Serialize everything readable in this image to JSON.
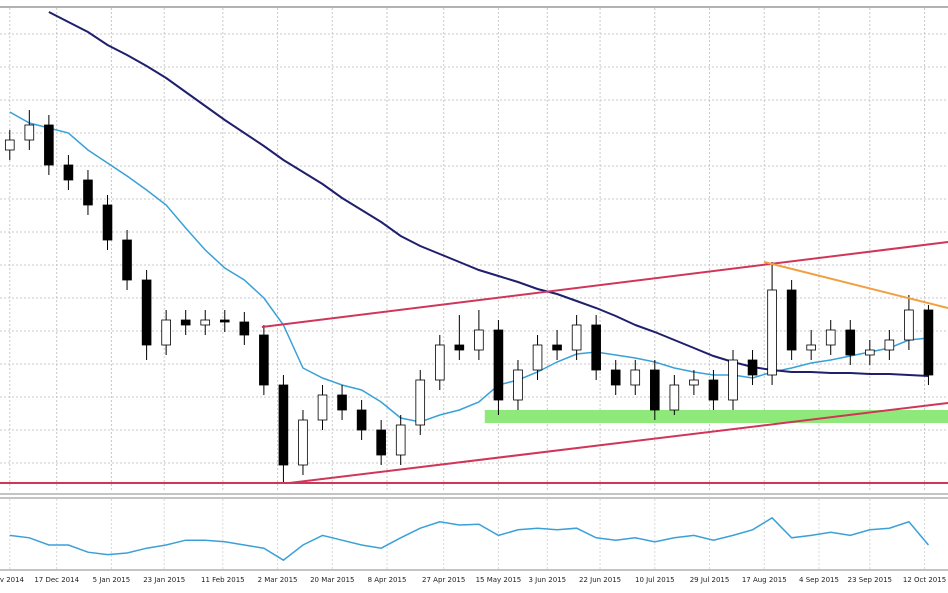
{
  "chart_data": [
    {
      "type": "candlestick",
      "xlim": [
        -0.5,
        48
      ],
      "ylim": [
        0,
        482
      ],
      "grid": true,
      "xticks": [
        {
          "value": 0,
          "label": "ov 2014"
        },
        {
          "value": 2.4,
          "label": "17 Dec 2014"
        },
        {
          "value": 5.2,
          "label": "5 Jan 2015"
        },
        {
          "value": 7.9,
          "label": "23 Jan 2015"
        },
        {
          "value": 10.9,
          "label": "11 Feb 2015"
        },
        {
          "value": 13.7,
          "label": "2 Mar 2015"
        },
        {
          "value": 16.5,
          "label": "20 Mar 2015"
        },
        {
          "value": 19.3,
          "label": "8 Apr 2015"
        },
        {
          "value": 22.2,
          "label": "27 Apr 2015"
        },
        {
          "value": 25,
          "label": "15 May 2015"
        },
        {
          "value": 27.5,
          "label": "3 Jun 2015"
        },
        {
          "value": 30.2,
          "label": "22 Jun 2015"
        },
        {
          "value": 33,
          "label": "10 Jul 2015"
        },
        {
          "value": 35.8,
          "label": "29 Jul 2015"
        },
        {
          "value": 38.6,
          "label": "17 Aug 2015"
        },
        {
          "value": 41.4,
          "label": "4 Sep 2015"
        },
        {
          "value": 44,
          "label": "23 Sep 2015"
        },
        {
          "value": 46.8,
          "label": "12 Oct 2015"
        }
      ],
      "up_color": "#ffffff",
      "down_color": "#000000",
      "open": [
        340,
        350,
        365,
        325,
        310,
        285,
        250,
        210,
        145,
        170,
        165,
        170,
        168,
        155,
        105,
        25,
        70,
        95,
        80,
        60,
        35,
        65,
        110,
        145,
        140,
        160,
        90,
        120,
        145,
        140,
        165,
        120,
        105,
        120,
        80,
        105,
        110,
        90,
        130,
        115,
        200,
        140,
        145,
        160,
        135,
        140,
        150,
        180
      ],
      "high": [
        360,
        380,
        375,
        335,
        320,
        295,
        260,
        220,
        180,
        180,
        180,
        180,
        178,
        165,
        115,
        80,
        105,
        105,
        90,
        70,
        75,
        120,
        155,
        175,
        180,
        170,
        130,
        155,
        160,
        175,
        175,
        130,
        130,
        130,
        115,
        120,
        120,
        140,
        140,
        228,
        210,
        160,
        170,
        170,
        150,
        160,
        195,
        185
      ],
      "low": [
        330,
        340,
        315,
        300,
        275,
        240,
        200,
        130,
        135,
        155,
        155,
        158,
        145,
        95,
        8,
        15,
        60,
        70,
        50,
        25,
        25,
        55,
        100,
        130,
        130,
        75,
        80,
        110,
        130,
        130,
        110,
        95,
        95,
        70,
        75,
        95,
        80,
        80,
        105,
        105,
        130,
        130,
        135,
        125,
        125,
        130,
        140,
        105
      ],
      "close": [
        350,
        365,
        325,
        310,
        285,
        250,
        210,
        145,
        170,
        165,
        170,
        168,
        155,
        105,
        25,
        70,
        95,
        80,
        60,
        35,
        65,
        110,
        145,
        140,
        160,
        90,
        120,
        145,
        140,
        165,
        120,
        105,
        120,
        80,
        105,
        110,
        90,
        130,
        115,
        200,
        140,
        145,
        160,
        135,
        140,
        150,
        180,
        115
      ],
      "series": [
        {
          "color": "#3aa0d8",
          "values": [
            378,
            367,
            362,
            357,
            340,
            327,
            314,
            300,
            285,
            262,
            240,
            222,
            210,
            192,
            165,
            122,
            112,
            105,
            100,
            88,
            72,
            68,
            75,
            80,
            88,
            105,
            110,
            118,
            128,
            136,
            138,
            135,
            132,
            128,
            122,
            118,
            115,
            115,
            112,
            118,
            122,
            127,
            130,
            134,
            138,
            142,
            150,
            152
          ]
        },
        {
          "color": "#1f1f6e",
          "values": [
            null,
            null,
            478,
            468,
            458,
            445,
            435,
            424,
            412,
            398,
            384,
            370,
            357,
            344,
            330,
            318,
            306,
            292,
            280,
            268,
            254,
            244,
            236,
            228,
            220,
            214,
            208,
            201,
            196,
            189,
            182,
            174,
            165,
            158,
            150,
            142,
            134,
            128,
            123,
            120,
            118,
            118,
            117,
            117,
            116,
            116,
            115,
            114
          ]
        }
      ],
      "band": {
        "color": "#8ee87a",
        "x": [
          24.3,
          48
        ],
        "y": [
          67,
          80
        ]
      },
      "lines": [
        {
          "color": "#d0365a",
          "x": [
            12.9,
            48
          ],
          "y": [
            163,
            248
          ]
        },
        {
          "color": "#d0365a",
          "x": [
            14.3,
            48
          ],
          "y": [
            7,
            87
          ]
        },
        {
          "color": "#d0365a",
          "x": [
            -0.5,
            48
          ],
          "y": [
            7,
            7
          ]
        },
        {
          "color": "#f0a040",
          "x": [
            38.6,
            48
          ],
          "y": [
            228,
            182
          ]
        }
      ]
    },
    {
      "type": "line",
      "ylim": [
        0,
        100
      ],
      "color": "#3aa0d8",
      "values": [
        62,
        59,
        50,
        50,
        41,
        38,
        40,
        46,
        50,
        56,
        56,
        54,
        50,
        46,
        31,
        50,
        62,
        56,
        50,
        46,
        59,
        71,
        79,
        75,
        76,
        62,
        69,
        71,
        69,
        71,
        59,
        56,
        59,
        54,
        59,
        62,
        56,
        62,
        69,
        84,
        59,
        62,
        66,
        62,
        69,
        71,
        79,
        50
      ]
    }
  ]
}
